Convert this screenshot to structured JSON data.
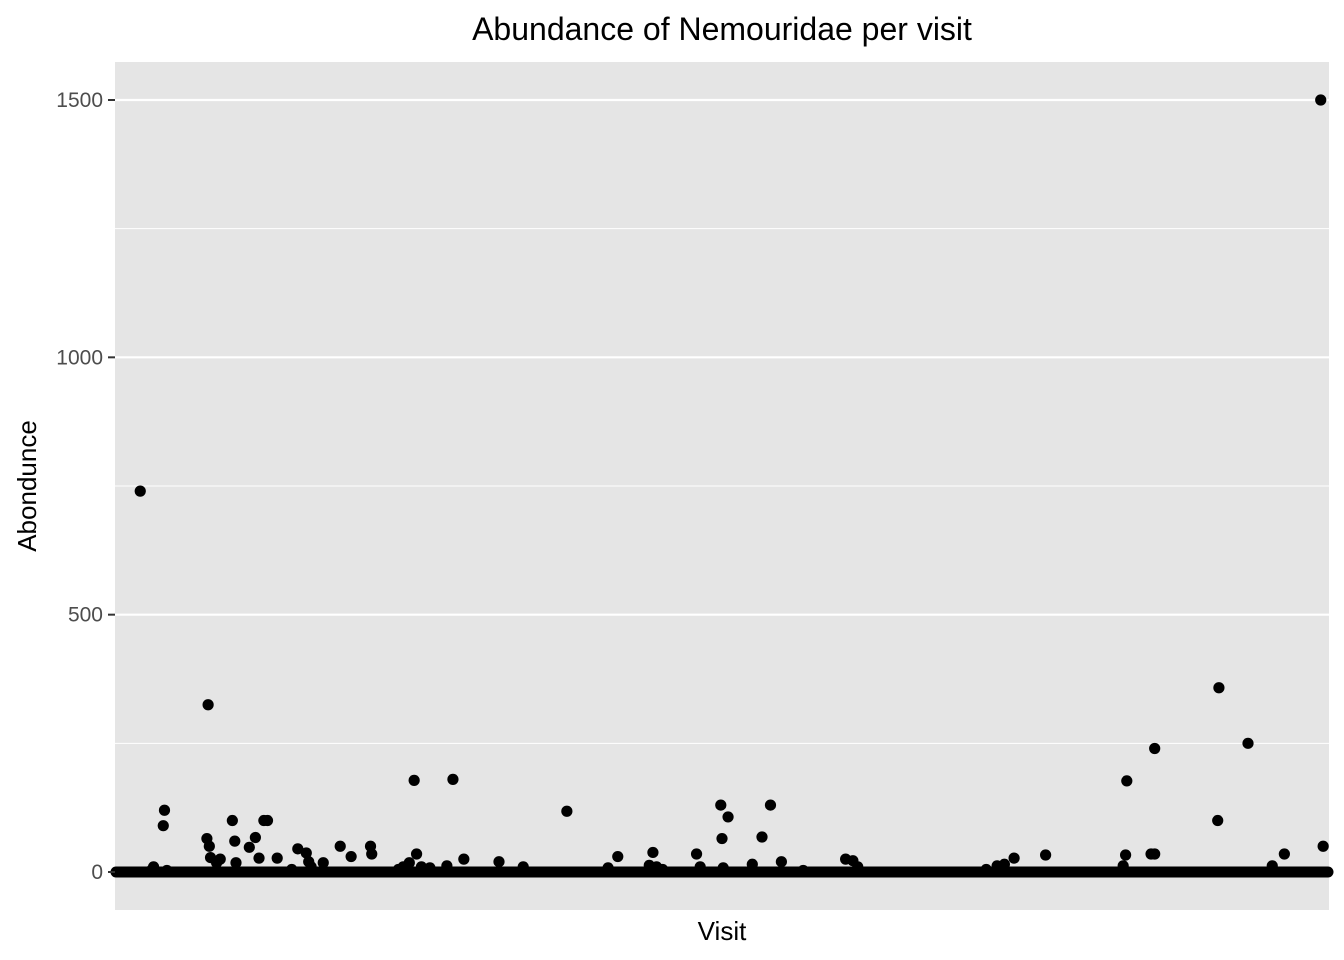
{
  "chart_data": {
    "type": "scatter",
    "title": "Abundance of Nemouridae per visit",
    "xlabel": "Visit",
    "ylabel": "Abondunce",
    "ylim": [
      -70,
      1585
    ],
    "y_ticks": [
      0,
      500,
      1000,
      1500
    ],
    "y_tick_labels": [
      "0",
      "500",
      "1000",
      "1500"
    ],
    "x_ticks": [],
    "xlim": [
      0,
      1000
    ],
    "grid": true,
    "legend": "none",
    "colors": {
      "panel": "#e5e5e5",
      "grid": "#ffffff",
      "point": "#000000",
      "tick": "#333333"
    },
    "zero_run": {
      "x_from": 0,
      "x_to": 1000,
      "y": 0
    },
    "points": [
      {
        "x": 20,
        "y": 740
      },
      {
        "x": 29,
        "y": 3
      },
      {
        "x": 31,
        "y": 10
      },
      {
        "x": 39,
        "y": 90
      },
      {
        "x": 40,
        "y": 120
      },
      {
        "x": 42,
        "y": 3
      },
      {
        "x": 75,
        "y": 65
      },
      {
        "x": 76,
        "y": 325
      },
      {
        "x": 77,
        "y": 50
      },
      {
        "x": 78,
        "y": 28
      },
      {
        "x": 83,
        "y": 18
      },
      {
        "x": 86,
        "y": 25
      },
      {
        "x": 96,
        "y": 100
      },
      {
        "x": 98,
        "y": 60
      },
      {
        "x": 99,
        "y": 18
      },
      {
        "x": 110,
        "y": 48
      },
      {
        "x": 115,
        "y": 67
      },
      {
        "x": 118,
        "y": 27
      },
      {
        "x": 122,
        "y": 100
      },
      {
        "x": 125,
        "y": 100
      },
      {
        "x": 133,
        "y": 27
      },
      {
        "x": 145,
        "y": 5
      },
      {
        "x": 150,
        "y": 45
      },
      {
        "x": 157,
        "y": 37
      },
      {
        "x": 159,
        "y": 20
      },
      {
        "x": 161,
        "y": 10
      },
      {
        "x": 171,
        "y": 18
      },
      {
        "x": 185,
        "y": 50
      },
      {
        "x": 194,
        "y": 30
      },
      {
        "x": 210,
        "y": 50
      },
      {
        "x": 211,
        "y": 35
      },
      {
        "x": 233,
        "y": 5
      },
      {
        "x": 237,
        "y": 10
      },
      {
        "x": 242,
        "y": 18
      },
      {
        "x": 246,
        "y": 178
      },
      {
        "x": 248,
        "y": 35
      },
      {
        "x": 252,
        "y": 10
      },
      {
        "x": 259,
        "y": 8
      },
      {
        "x": 273,
        "y": 12
      },
      {
        "x": 278,
        "y": 180
      },
      {
        "x": 287,
        "y": 25
      },
      {
        "x": 316,
        "y": 20
      },
      {
        "x": 336,
        "y": 10
      },
      {
        "x": 372,
        "y": 118
      },
      {
        "x": 406,
        "y": 8
      },
      {
        "x": 414,
        "y": 30
      },
      {
        "x": 440,
        "y": 13
      },
      {
        "x": 443,
        "y": 38
      },
      {
        "x": 446,
        "y": 10
      },
      {
        "x": 451,
        "y": 5
      },
      {
        "x": 479,
        "y": 35
      },
      {
        "x": 482,
        "y": 10
      },
      {
        "x": 499,
        "y": 130
      },
      {
        "x": 500,
        "y": 65
      },
      {
        "x": 501,
        "y": 8
      },
      {
        "x": 505,
        "y": 107
      },
      {
        "x": 525,
        "y": 15
      },
      {
        "x": 533,
        "y": 68
      },
      {
        "x": 540,
        "y": 130
      },
      {
        "x": 549,
        "y": 20
      },
      {
        "x": 567,
        "y": 3
      },
      {
        "x": 602,
        "y": 25
      },
      {
        "x": 608,
        "y": 22
      },
      {
        "x": 612,
        "y": 10
      },
      {
        "x": 718,
        "y": 5
      },
      {
        "x": 727,
        "y": 12
      },
      {
        "x": 733,
        "y": 15
      },
      {
        "x": 741,
        "y": 27
      },
      {
        "x": 767,
        "y": 33
      },
      {
        "x": 831,
        "y": 12
      },
      {
        "x": 833,
        "y": 33
      },
      {
        "x": 834,
        "y": 177
      },
      {
        "x": 854,
        "y": 35
      },
      {
        "x": 857,
        "y": 35
      },
      {
        "x": 857,
        "y": 240
      },
      {
        "x": 909,
        "y": 100
      },
      {
        "x": 910,
        "y": 358
      },
      {
        "x": 934,
        "y": 250
      },
      {
        "x": 954,
        "y": 12
      },
      {
        "x": 964,
        "y": 35
      },
      {
        "x": 996,
        "y": 50
      },
      {
        "x": 994,
        "y": 1500
      }
    ]
  }
}
